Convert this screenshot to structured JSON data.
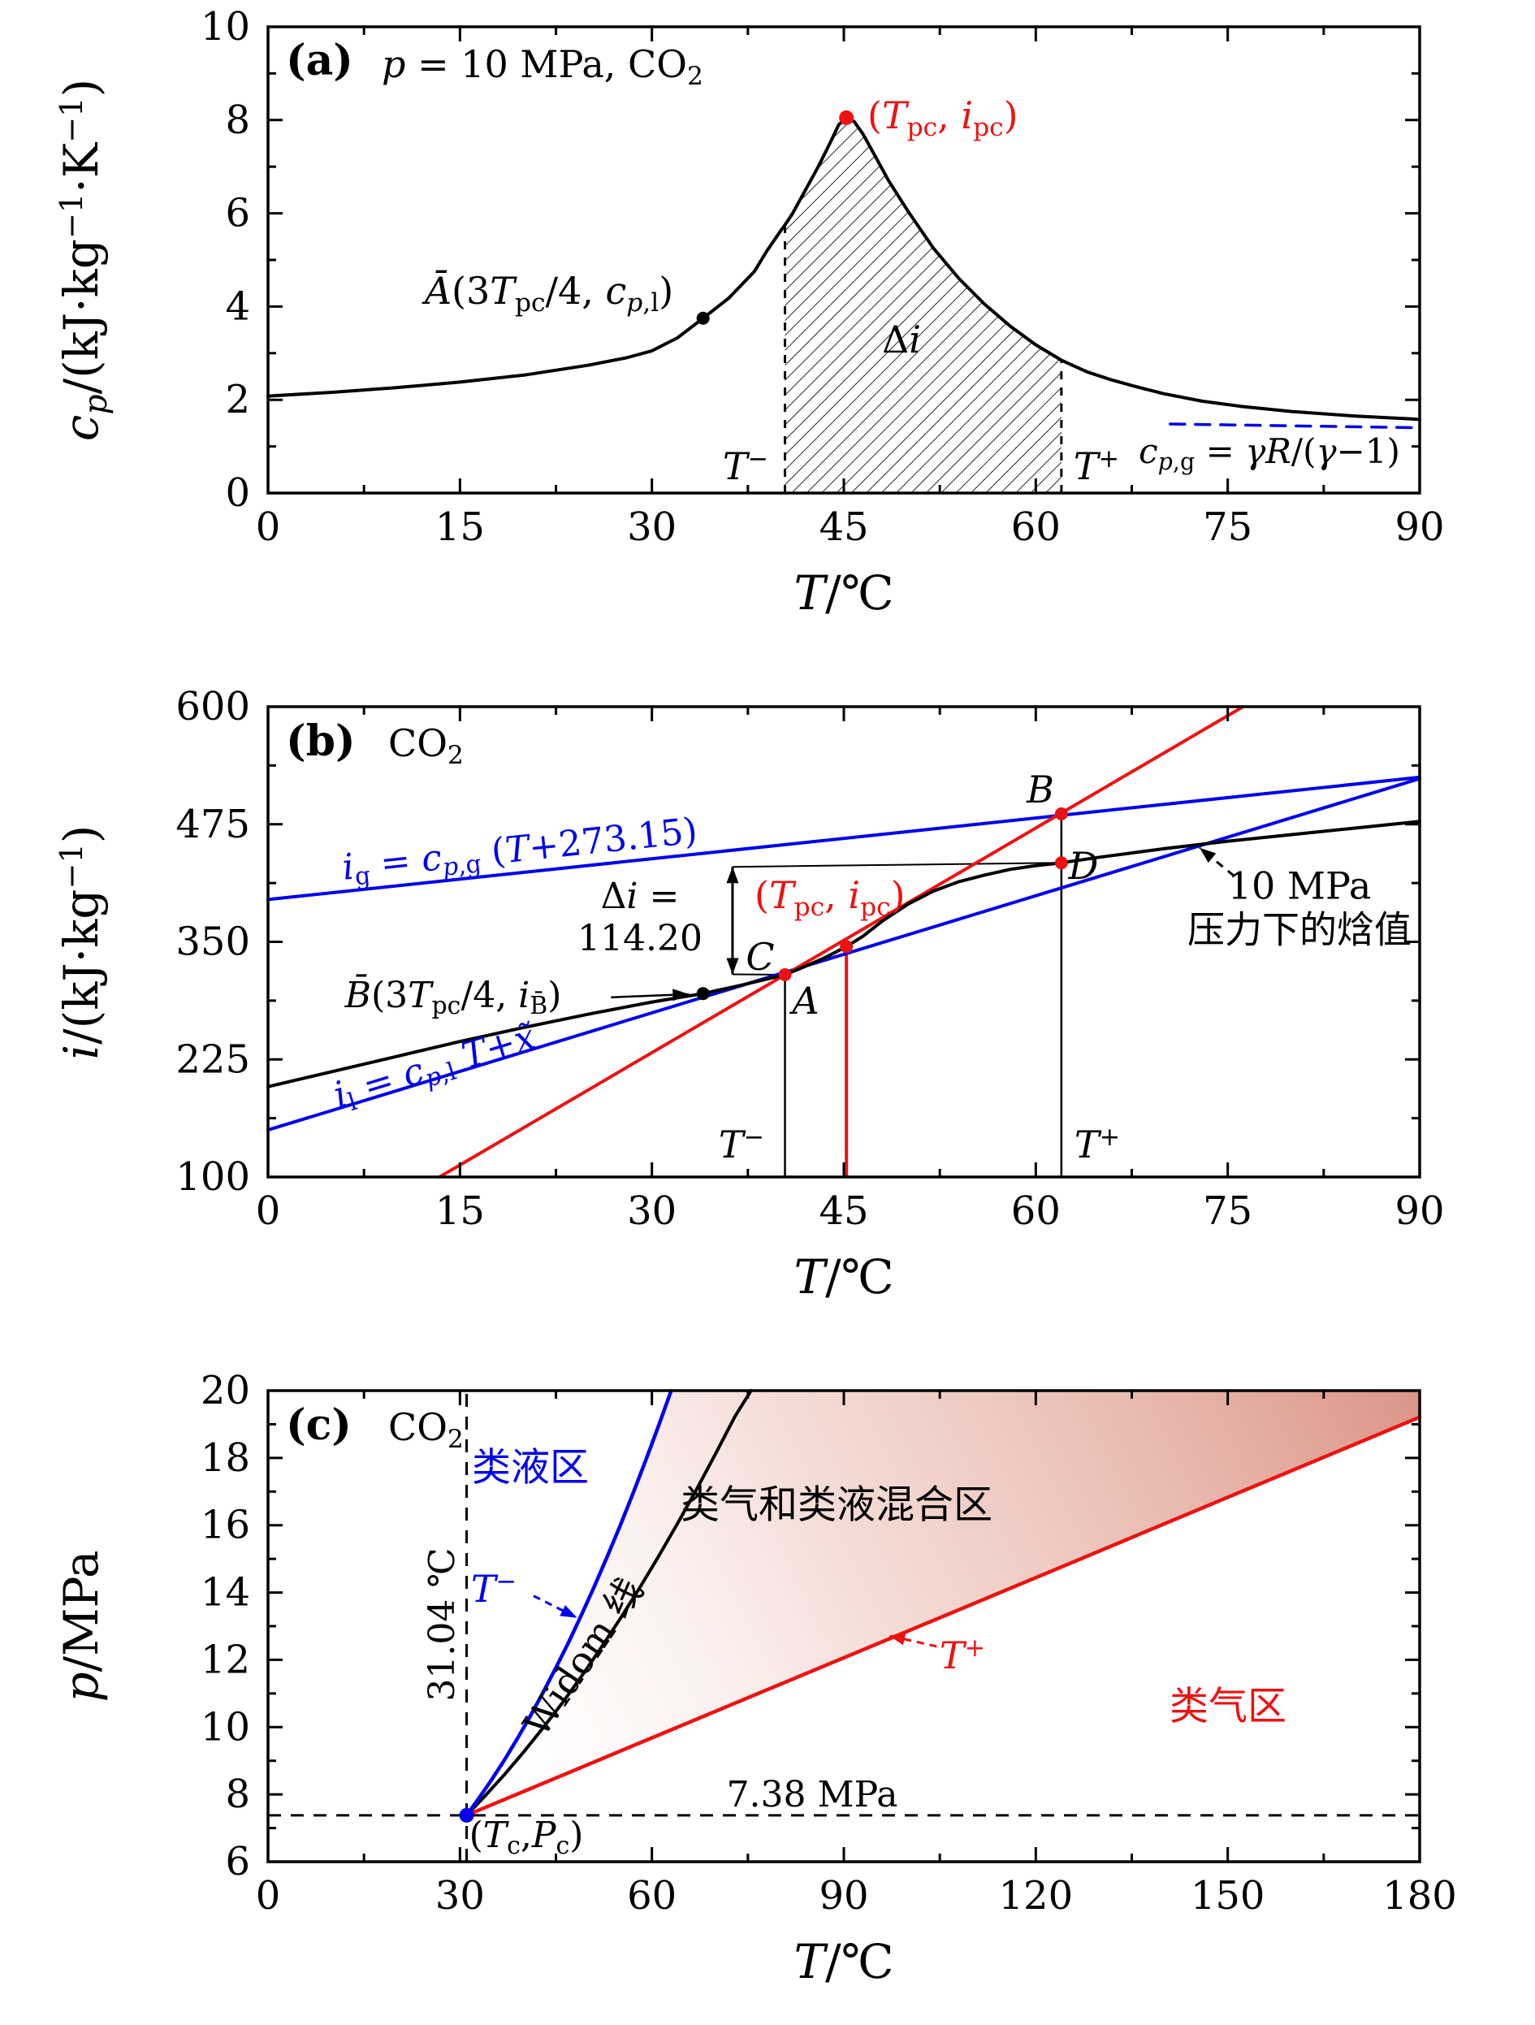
{
  "figure": {
    "background": "#ffffff",
    "colors": {
      "blue": "#0000ee",
      "red": "#ee1111",
      "black": "#000000",
      "mix_pink": "#d98f80"
    }
  },
  "chart_data": [
    {
      "id": "a",
      "type": "line",
      "axes": {
        "x": {
          "min": 0,
          "max": 90,
          "major": 15,
          "minor": 7.5,
          "ticks": [
            0,
            15,
            30,
            45,
            60,
            75,
            90
          ],
          "label": "T/°C"
        },
        "y": {
          "min": 0,
          "max": 10,
          "major": 2,
          "minor": 1,
          "ticks": [
            0,
            2,
            4,
            6,
            8,
            10
          ],
          "label": "cp/(kJ·kg−1·K−1)"
        }
      },
      "series": [
        {
          "name": "cp-curve-10MPa",
          "color": "#000000",
          "width": 4,
          "x": [
            0,
            5,
            10,
            15,
            20,
            25,
            28,
            30,
            32,
            34,
            36,
            38,
            39,
            40,
            40.4,
            41,
            42,
            43,
            44,
            44.6,
            45.2,
            45.8,
            46.5,
            47.5,
            48.5,
            50,
            52,
            54,
            56,
            58,
            60,
            62,
            64,
            66,
            68,
            70,
            73,
            76,
            80,
            85,
            90
          ],
          "y": [
            2.08,
            2.16,
            2.26,
            2.38,
            2.53,
            2.74,
            2.9,
            3.05,
            3.33,
            3.75,
            4.18,
            4.75,
            5.2,
            5.6,
            5.75,
            6.0,
            6.5,
            7.0,
            7.55,
            7.9,
            8.05,
            7.97,
            7.7,
            7.2,
            6.7,
            6.05,
            5.25,
            4.6,
            4.05,
            3.58,
            3.18,
            2.85,
            2.6,
            2.42,
            2.27,
            2.13,
            1.97,
            1.86,
            1.75,
            1.65,
            1.58
          ]
        },
        {
          "name": "ideal-gas-cp-line",
          "color": "#0000ee",
          "width": 3.5,
          "dash": "18 13",
          "x": [
            70.5,
            90
          ],
          "y": [
            1.48,
            1.4
          ]
        }
      ],
      "hatch": {
        "series": "cp-curve-10MPa",
        "from": 40.4,
        "to": 62,
        "base": 0
      },
      "guides": [
        {
          "x1": 40.4,
          "y1": 0,
          "x2": 40.4,
          "y2": 5.75,
          "dash": "10 10",
          "width": 3
        },
        {
          "x1": 62,
          "y1": 0,
          "x2": 62,
          "y2": 2.85,
          "dash": "10 10",
          "width": 3
        }
      ],
      "points": [
        {
          "x": 34,
          "y": 3.75,
          "r": 8,
          "color": "#000000"
        },
        {
          "x": 45.2,
          "y": 8.05,
          "r": 9,
          "color": "#ee1111"
        }
      ],
      "arrows": [],
      "annotations": {
        "tag": "(a)",
        "condition": "<i>p</i> = 10 MPa, CO<sub>2</sub>",
        "point_a": "<i>Ā</i>(3<i>T</i><sub>pc</sub>/4, <i>c</i><sub><i>p</i>,l</sub>)",
        "delta_i": "Δ<i>i</i>",
        "t_minus": "<i>T</i><sup>−</sup>",
        "t_plus": "<i>T</i><sup>+</sup>",
        "pc_point": "(<i>T</i><sub>pc</sub>, <i>i</i><sub>pc</sub>)",
        "cpg_eq": "<i>c</i><sub><i>p</i>,g</sub> = <i>γR</i>/(<i>γ</i>−1)",
        "xlabel": "<i>T</i>/℃",
        "ylabel": "<i>c<sub>p</sub></i>/(kJ·kg<sup>−1</sup>·K<sup>−1</sup>)"
      }
    },
    {
      "id": "b",
      "type": "line",
      "axes": {
        "x": {
          "min": 0,
          "max": 90,
          "major": 15,
          "minor": 7.5,
          "ticks": [
            0,
            15,
            30,
            45,
            60,
            75,
            90
          ],
          "label": "T/°C"
        },
        "y": {
          "min": 100,
          "max": 600,
          "major": 125,
          "minor": 62.5,
          "ticks": [
            100,
            225,
            350,
            475,
            600
          ],
          "label": "i/(kJ·kg−1)"
        }
      },
      "series": [
        {
          "name": "ig-gas-line",
          "color": "#0000ee",
          "width": 4,
          "x": [
            0,
            90
          ],
          "y": [
            395,
            525
          ]
        },
        {
          "name": "il-liquid-line",
          "color": "#0000ee",
          "width": 4,
          "x": [
            0,
            90
          ],
          "y": [
            150,
            523.5
          ]
        },
        {
          "name": "red-transition-line",
          "color": "#ee1111",
          "width": 4,
          "x": [
            13.4,
            76.2
          ],
          "y": [
            100,
            600
          ]
        },
        {
          "name": "enthalpy-curve-10MPa",
          "color": "#000000",
          "width": 4,
          "x": [
            0,
            5,
            10,
            15,
            20,
            25,
            30,
            34,
            37,
            40.4,
            42,
            43.5,
            45.2,
            46.5,
            48,
            50,
            52,
            54,
            56,
            58,
            60,
            62,
            65,
            70,
            75,
            80,
            85,
            90
          ],
          "y": [
            196,
            212,
            228,
            244,
            259,
            273,
            286,
            295,
            304,
            315,
            324,
            333,
            345,
            356,
            372,
            390,
            404,
            414,
            421,
            427,
            431,
            434,
            440,
            449,
            457,
            464,
            471,
            478
          ]
        }
      ],
      "guides": [
        {
          "x1": 40.4,
          "y1": 100,
          "x2": 40.4,
          "y2": 315,
          "width": 2.5
        },
        {
          "x1": 62,
          "y1": 100,
          "x2": 62,
          "y2": 486,
          "width": 2.5
        },
        {
          "x1": 45.2,
          "y1": 100,
          "x2": 45.2,
          "y2": 345,
          "color": "#ee1111",
          "width": 4
        },
        {
          "x1": 36.3,
          "y1": 429.7,
          "x2": 62,
          "y2": 434,
          "width": 2
        },
        {
          "x1": 36.3,
          "y1": 315.5,
          "x2": 40.4,
          "y2": 315,
          "width": 2
        }
      ],
      "points": [
        {
          "x": 34,
          "y": 295,
          "r": 8,
          "color": "#000000"
        },
        {
          "x": 40.4,
          "y": 315,
          "r": 8,
          "color": "#ee1111"
        },
        {
          "x": 45.2,
          "y": 345,
          "r": 8,
          "color": "#ee1111"
        },
        {
          "x": 62,
          "y": 486,
          "r": 8,
          "color": "#ee1111"
        },
        {
          "x": 62,
          "y": 434,
          "r": 8,
          "color": "#ee1111"
        }
      ],
      "arrows": [
        {
          "x1": 36.3,
          "y1": 315.5,
          "x2": 36.3,
          "y2": 429.7,
          "width": 3,
          "heads": 2
        },
        {
          "x1": 26.8,
          "y1": 291,
          "x2": 32.9,
          "y2": 294.3,
          "width": 2.5
        },
        {
          "x1": 75.5,
          "y1": 420,
          "x2": 72.8,
          "y2": 450,
          "width": 3,
          "dash": "10 8"
        }
      ],
      "annotations": {
        "tag": "(b)",
        "co2": "CO<sub>2</sub>",
        "ig_eq": "<i>i</i><sub>g</sub> = <i>c</i><sub><i>p</i>,g</sub> (<i>T</i>+273.15)",
        "il_eq": "<i>i</i><sub>l</sub> = <i>c</i><sub><i>p</i>,l</sub> <i>T</i>+<i>x̃</i>",
        "delta_l1": "Δ<i>i</i> =",
        "delta_l2": "114.20",
        "pc_point": "(<i>T</i><sub>pc</sub>, <i>i</i><sub>pc</sub>)",
        "label_A": "<i>A</i>",
        "label_B": "<i>B</i>",
        "label_C": "<i>C</i>",
        "label_D": "<i>D</i>",
        "bbar": "<i>B̄</i>(3<i>T</i><sub>pc</sub>/4, <i>i</i><sub>B̄</sub>)",
        "note_line1": "10 MPa",
        "note_line2": "压力下的焓值",
        "t_minus": "<i>T</i><sup>−</sup>",
        "t_plus": "<i>T</i><sup>+</sup>",
        "xlabel": "<i>T</i>/℃",
        "ylabel": "<i>i</i>/(kJ·kg<sup>−1</sup>)"
      }
    },
    {
      "id": "c",
      "type": "line",
      "axes": {
        "x": {
          "min": 0,
          "max": 180,
          "major": 30,
          "minor": 15,
          "ticks": [
            0,
            30,
            60,
            90,
            120,
            150,
            180
          ],
          "label": "T/°C"
        },
        "y": {
          "min": 6,
          "max": 20,
          "major": 2,
          "minor": 1,
          "ticks": [
            6,
            8,
            10,
            12,
            14,
            16,
            18,
            20
          ],
          "label": "p/MPa"
        }
      },
      "region": {
        "name": "mixed-zone",
        "fill": "gradient",
        "x": [
          31.04,
          33,
          35,
          37,
          39,
          41,
          43,
          45,
          47,
          49,
          51,
          53,
          55,
          57,
          59,
          61,
          63,
          180,
          180,
          150,
          120,
          90,
          60,
          31.04
        ],
        "y": [
          7.38,
          7.9,
          8.45,
          9.04,
          9.67,
          10.33,
          11.03,
          11.77,
          12.53,
          13.34,
          14.18,
          15.06,
          15.97,
          16.92,
          17.91,
          18.93,
          19.99,
          20.0,
          19.21,
          16.83,
          14.44,
          12.06,
          9.68,
          7.38
        ]
      },
      "series": [
        {
          "name": "widom-line",
          "color": "#000000",
          "width": 4,
          "x": [
            31.04,
            34,
            37,
            40,
            43,
            46,
            49,
            52,
            55,
            58,
            61,
            64,
            67,
            70,
            73,
            75.5
          ],
          "y": [
            7.38,
            7.97,
            8.6,
            9.27,
            9.98,
            10.72,
            11.51,
            12.34,
            13.21,
            14.11,
            15.06,
            16.05,
            17.07,
            18.14,
            19.24,
            20.0
          ]
        },
        {
          "name": "t-minus-curve",
          "color": "#0000ee",
          "width": 4.5,
          "x": [
            31.04,
            33,
            35,
            37,
            39,
            41,
            43,
            45,
            47,
            49,
            51,
            53,
            55,
            57,
            59,
            61,
            63
          ],
          "y": [
            7.38,
            7.9,
            8.45,
            9.04,
            9.67,
            10.33,
            11.03,
            11.77,
            12.53,
            13.34,
            14.18,
            15.06,
            15.97,
            16.92,
            17.91,
            18.93,
            19.99
          ]
        },
        {
          "name": "t-plus-line",
          "color": "#ee1111",
          "width": 4.5,
          "x": [
            31.04,
            60,
            90,
            120,
            150,
            180
          ],
          "y": [
            7.38,
            9.68,
            12.06,
            14.44,
            16.83,
            19.21
          ]
        }
      ],
      "guides": [
        {
          "x1": 31.04,
          "y1": 6,
          "x2": 31.04,
          "y2": 20,
          "dash": "16 12",
          "width": 3
        },
        {
          "x1": 0,
          "y1": 7.38,
          "x2": 180,
          "y2": 7.38,
          "dash": "16 12",
          "width": 3
        }
      ],
      "points": [
        {
          "x": 31.04,
          "y": 7.38,
          "r": 9,
          "color": "#0000ee"
        }
      ],
      "arrows": [
        {
          "x1": 41.5,
          "y1": 13.9,
          "x2": 48.3,
          "y2": 13.25,
          "color": "#0000ee",
          "width": 3,
          "dash": "9 7"
        },
        {
          "x1": 104.5,
          "y1": 12.4,
          "x2": 97,
          "y2": 12.72,
          "color": "#ee1111",
          "width": 3,
          "dash": "9 7"
        }
      ],
      "annotations": {
        "tag": "(c)",
        "co2": "CO<sub>2</sub>",
        "liquid_like": "类液区",
        "mixed_zone": "类气和类液混合区",
        "gas_like": "类气区",
        "widom": "Widom 线",
        "t_minus": "<i>T</i><sup>−</sup>",
        "t_plus": "<i>T</i><sup>+</sup>",
        "tc_line": "31.04 ℃",
        "pc_line": "7.38 MPa",
        "critical_point": "(<i>T</i><sub>c</sub>,<i>P</i><sub>c</sub>)",
        "xlabel": "<i>T</i>/℃",
        "ylabel": "<i>p</i>/MPa"
      }
    }
  ]
}
